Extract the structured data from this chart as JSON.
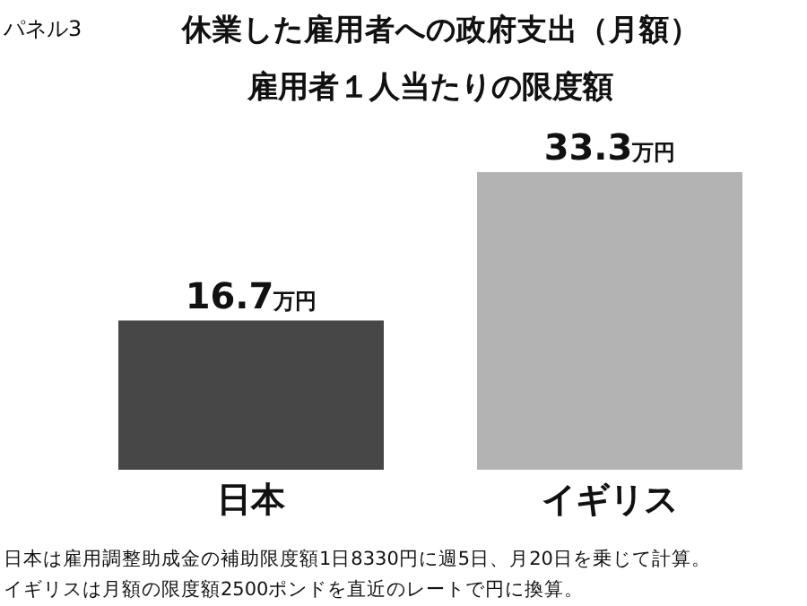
{
  "chart_data": {
    "type": "bar",
    "title": "休業した雇用者への政府支出（月額）",
    "subtitle": "雇用者１人当たりの限度額",
    "categories": [
      "日本",
      "イギリス"
    ],
    "values": [
      16.7,
      33.3
    ],
    "colors": [
      "#474747",
      "#b3b3b3"
    ],
    "value_labels": [
      "16.7万円",
      "33.3万円"
    ],
    "annotations": [
      "パネル3",
      "日本は雇用調整助成金の補助限度額1日8330円に週5日、月20日を乗じて計算。",
      "イギリスは月額の限度額2500ポンドを直近のレートで円に換算。"
    ]
  }
}
